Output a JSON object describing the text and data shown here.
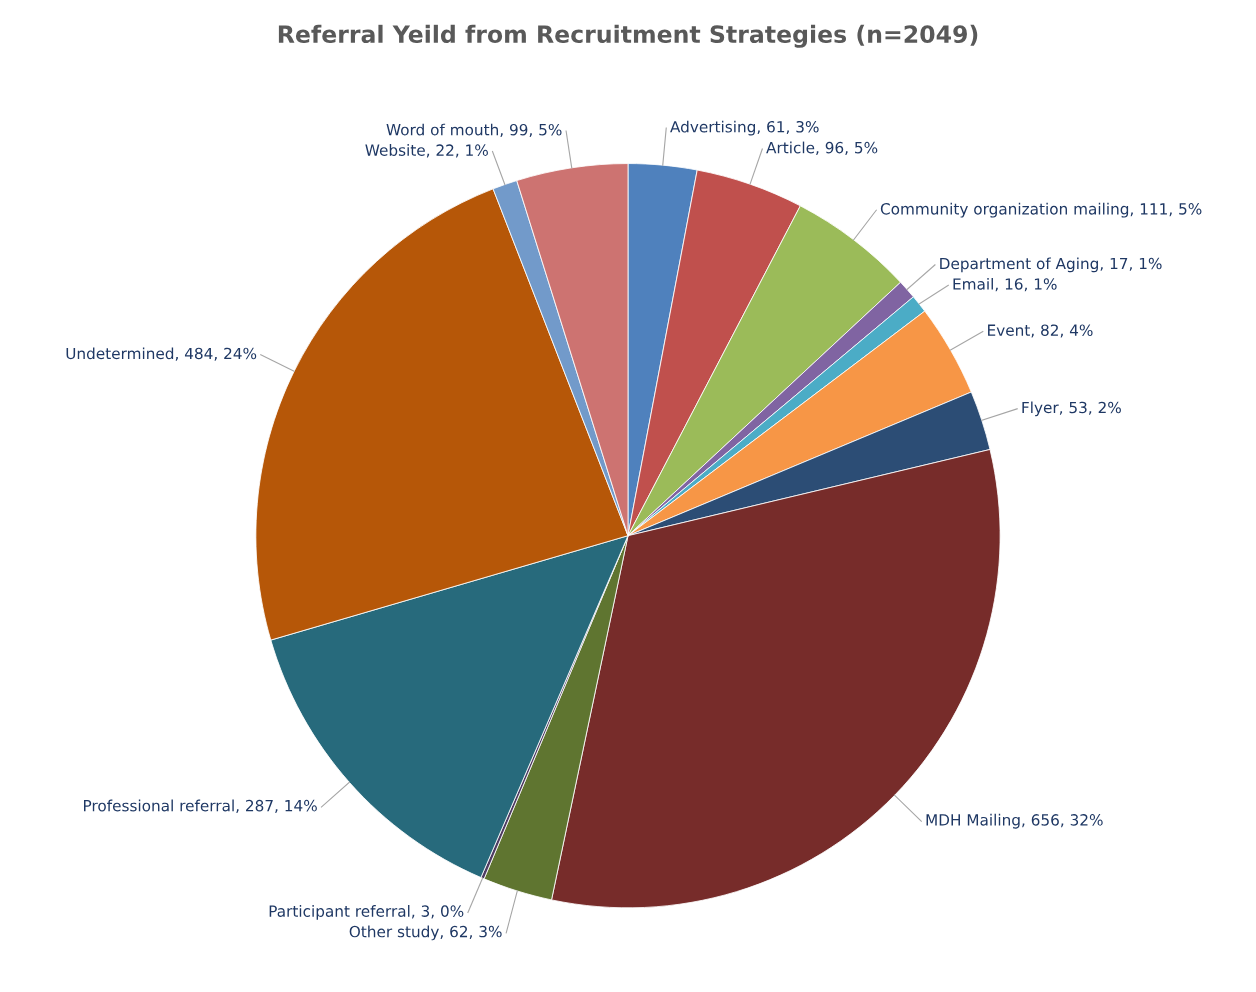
{
  "chart_data": {
    "type": "pie",
    "title": "Referral Yeild from Recruitment Strategies (n=2049)",
    "categories": [
      "Advertising",
      "Article",
      "Community organization mailing",
      "Department of Aging",
      "Email",
      "Event",
      "Flyer",
      "MDH Mailing",
      "Other study",
      "Participant referral",
      "Professional referral",
      "Undetermined",
      "Website",
      "Word of mouth"
    ],
    "values": [
      61,
      96,
      111,
      17,
      16,
      82,
      53,
      656,
      62,
      3,
      287,
      484,
      22,
      99
    ],
    "colors": [
      "#4f81bd",
      "#c0504d",
      "#9bbb59",
      "#8064a2",
      "#4bacc6",
      "#f79646",
      "#2c4d75",
      "#772c2a",
      "#5f7530",
      "#4d3b62",
      "#276a7c",
      "#b65708",
      "#729aca",
      "#cd7371"
    ],
    "value_labels": [
      "61, 3%",
      "96, 5%",
      "111, 5%",
      "17, 1%",
      "16, 1%",
      "82, 4%",
      "53, 2%",
      "656, 32%",
      "62, 3%",
      "3, 0%",
      "287, 14%",
      "484, 24%",
      "22, 1%",
      "99, 5%"
    ]
  }
}
